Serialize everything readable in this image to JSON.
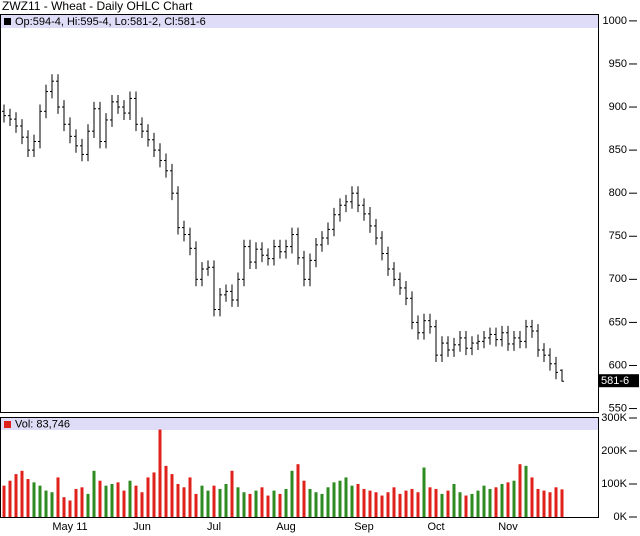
{
  "chart_data": [
    {
      "type": "ohlc",
      "title": "ZWZ11 - Wheat - Daily OHLC Chart",
      "legend": "Op:594-4, Hi:595-4, Lo:581-2, Cl:581-6",
      "last_label": "581-6",
      "color": "#000000",
      "categories": [
        null,
        null,
        null,
        null,
        null,
        null,
        null,
        null,
        null,
        null,
        null,
        "May 11",
        null,
        null,
        null,
        null,
        null,
        null,
        null,
        null,
        null,
        null,
        null,
        "Jun",
        null,
        null,
        null,
        null,
        null,
        null,
        null,
        null,
        null,
        null,
        null,
        "Jul",
        null,
        null,
        null,
        null,
        null,
        null,
        null,
        null,
        null,
        null,
        null,
        "Aug",
        null,
        null,
        null,
        null,
        null,
        null,
        null,
        null,
        null,
        null,
        null,
        null,
        "Sep",
        null,
        null,
        null,
        null,
        null,
        null,
        null,
        null,
        null,
        null,
        null,
        "Oct",
        null,
        null,
        null,
        null,
        null,
        null,
        null,
        null,
        null,
        null,
        null,
        "Nov",
        null,
        null,
        null,
        null,
        null,
        null,
        null,
        null,
        null
      ],
      "open": [
        895,
        890,
        886,
        878,
        865,
        850,
        860,
        895,
        918,
        930,
        900,
        880,
        866,
        855,
        845,
        872,
        898,
        860,
        885,
        906,
        900,
        893,
        910,
        880,
        872,
        862,
        850,
        838,
        826,
        800,
        760,
        752,
        736,
        700,
        712,
        714,
        665,
        682,
        686,
        676,
        700,
        738,
        720,
        735,
        728,
        724,
        738,
        732,
        738,
        752,
        725,
        700,
        722,
        740,
        748,
        758,
        775,
        786,
        790,
        800,
        786,
        776,
        762,
        748,
        730,
        712,
        700,
        690,
        678,
        650,
        638,
        652,
        645,
        612,
        626,
        618,
        624,
        632,
        620,
        626,
        628,
        632,
        636,
        630,
        638,
        625,
        632,
        628,
        645,
        640,
        618,
        612,
        602,
        594.5
      ],
      "high": [
        903,
        898,
        894,
        886,
        873,
        868,
        903,
        926,
        938,
        938,
        908,
        888,
        874,
        863,
        880,
        906,
        906,
        893,
        914,
        914,
        908,
        918,
        918,
        888,
        880,
        870,
        858,
        846,
        834,
        808,
        768,
        760,
        744,
        720,
        722,
        722,
        690,
        694,
        694,
        708,
        746,
        746,
        743,
        743,
        736,
        746,
        746,
        746,
        760,
        760,
        733,
        730,
        748,
        756,
        766,
        783,
        794,
        798,
        808,
        808,
        794,
        784,
        770,
        756,
        738,
        720,
        708,
        698,
        686,
        658,
        660,
        660,
        653,
        634,
        634,
        632,
        640,
        640,
        634,
        636,
        640,
        644,
        644,
        646,
        646,
        640,
        640,
        653,
        653,
        648,
        626,
        620,
        610,
        595.5
      ],
      "low": [
        882,
        878,
        870,
        857,
        842,
        842,
        852,
        887,
        910,
        892,
        872,
        858,
        847,
        837,
        837,
        864,
        852,
        852,
        877,
        892,
        885,
        885,
        872,
        864,
        854,
        842,
        830,
        818,
        792,
        752,
        744,
        728,
        692,
        692,
        704,
        657,
        657,
        674,
        668,
        668,
        692,
        712,
        712,
        720,
        716,
        716,
        724,
        724,
        730,
        717,
        692,
        692,
        714,
        732,
        740,
        750,
        767,
        778,
        782,
        778,
        768,
        754,
        740,
        722,
        704,
        692,
        682,
        670,
        642,
        630,
        630,
        637,
        604,
        604,
        610,
        610,
        616,
        612,
        612,
        618,
        620,
        624,
        622,
        622,
        617,
        617,
        620,
        620,
        632,
        610,
        604,
        594,
        584,
        581.25
      ],
      "close": [
        890,
        886,
        878,
        865,
        850,
        860,
        895,
        918,
        930,
        900,
        880,
        866,
        855,
        845,
        872,
        898,
        860,
        885,
        906,
        900,
        893,
        910,
        880,
        872,
        862,
        850,
        838,
        826,
        800,
        760,
        752,
        736,
        700,
        712,
        714,
        665,
        682,
        686,
        676,
        700,
        738,
        720,
        735,
        728,
        724,
        738,
        732,
        738,
        752,
        725,
        700,
        722,
        740,
        748,
        758,
        775,
        786,
        790,
        800,
        786,
        776,
        762,
        748,
        730,
        712,
        700,
        690,
        678,
        650,
        638,
        652,
        645,
        612,
        626,
        618,
        624,
        632,
        620,
        626,
        628,
        632,
        636,
        630,
        638,
        625,
        632,
        628,
        645,
        640,
        618,
        612,
        602,
        592,
        581.75
      ],
      "ylim": [
        546,
        1008
      ],
      "yticks": [
        1000,
        950,
        900,
        850,
        800,
        750,
        700,
        650,
        600,
        550
      ],
      "grid": false
    },
    {
      "type": "bar",
      "legend": "Vol: 83,746",
      "up_color": "#2e8b22",
      "down_color": "#e0201a",
      "values": [
        95000,
        110000,
        130000,
        140000,
        115000,
        105000,
        95000,
        80000,
        75000,
        120000,
        60000,
        50000,
        85000,
        90000,
        70000,
        140000,
        110000,
        95000,
        100000,
        105000,
        80000,
        110000,
        95000,
        75000,
        120000,
        135000,
        265000,
        155000,
        130000,
        100000,
        90000,
        120000,
        70000,
        95000,
        80000,
        95000,
        85000,
        100000,
        140000,
        90000,
        75000,
        70000,
        80000,
        90000,
        65000,
        80000,
        70000,
        85000,
        140000,
        160000,
        110000,
        85000,
        75000,
        70000,
        90000,
        105000,
        110000,
        120000,
        95000,
        100000,
        85000,
        80000,
        75000,
        65000,
        75000,
        90000,
        70000,
        80000,
        85000,
        75000,
        150000,
        90000,
        85000,
        70000,
        80000,
        100000,
        75000,
        65000,
        70000,
        80000,
        95000,
        85000,
        90000,
        100000,
        105000,
        110000,
        160000,
        155000,
        120000,
        85000,
        80000,
        75000,
        90000,
        83746
      ],
      "ylim": [
        0,
        300000
      ],
      "yticks": [
        {
          "value": 300000,
          "label": "300K"
        },
        {
          "value": 200000,
          "label": "200K"
        },
        {
          "value": 100000,
          "label": "100K"
        },
        {
          "value": 0,
          "label": "0K"
        }
      ]
    }
  ]
}
